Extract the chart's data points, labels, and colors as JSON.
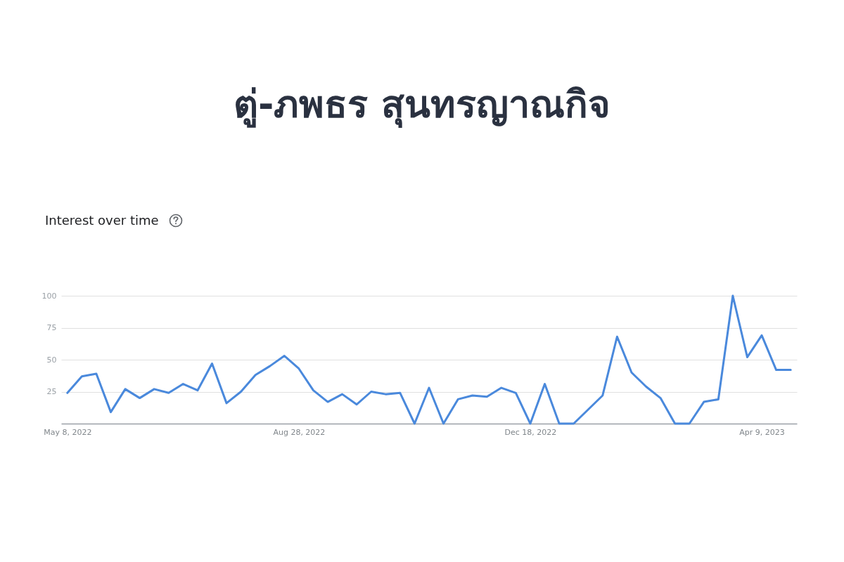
{
  "chart_data": {
    "type": "line",
    "title": "ตู่-ภพธร สุนทรญาณกิจ",
    "subtitle": "Interest over time",
    "x": [
      "2022-05-08",
      "2022-05-15",
      "2022-05-22",
      "2022-05-29",
      "2022-06-05",
      "2022-06-12",
      "2022-06-19",
      "2022-06-26",
      "2022-07-03",
      "2022-07-10",
      "2022-07-17",
      "2022-07-24",
      "2022-07-31",
      "2022-08-07",
      "2022-08-14",
      "2022-08-21",
      "2022-08-28",
      "2022-09-04",
      "2022-09-11",
      "2022-09-18",
      "2022-09-25",
      "2022-10-02",
      "2022-10-09",
      "2022-10-16",
      "2022-10-23",
      "2022-10-30",
      "2022-11-06",
      "2022-11-13",
      "2022-11-20",
      "2022-11-27",
      "2022-12-04",
      "2022-12-11",
      "2022-12-18",
      "2022-12-25",
      "2023-01-01",
      "2023-01-08",
      "2023-01-15",
      "2023-01-22",
      "2023-01-29",
      "2023-02-05",
      "2023-02-12",
      "2023-02-19",
      "2023-02-26",
      "2023-03-05",
      "2023-03-12",
      "2023-03-19",
      "2023-03-26",
      "2023-04-02",
      "2023-04-09",
      "2023-04-16",
      "2023-04-23"
    ],
    "series": [
      {
        "color": "#4a89dc",
        "values": [
          24,
          37,
          39,
          9,
          27,
          20,
          27,
          24,
          31,
          26,
          47,
          16,
          25,
          38,
          45,
          53,
          43,
          26,
          17,
          23,
          15,
          25,
          23,
          24,
          0,
          28,
          0,
          19,
          22,
          21,
          28,
          24,
          0,
          31,
          0,
          0,
          11,
          22,
          68,
          40,
          29,
          20,
          0,
          0,
          17,
          19,
          100,
          52,
          69,
          42,
          42
        ]
      }
    ],
    "xlim": [
      "2022-05-05",
      "2023-04-26"
    ],
    "xticks": [
      {
        "value": "2022-05-08",
        "label": "May 8, 2022"
      },
      {
        "value": "2022-08-28",
        "label": "Aug 28, 2022"
      },
      {
        "value": "2022-12-18",
        "label": "Dec 18, 2022"
      },
      {
        "value": "2023-04-09",
        "label": "Apr 9, 2023"
      }
    ],
    "ylim": [
      0,
      100
    ],
    "yticks": [
      25,
      50,
      75,
      100
    ],
    "grid": "y"
  }
}
